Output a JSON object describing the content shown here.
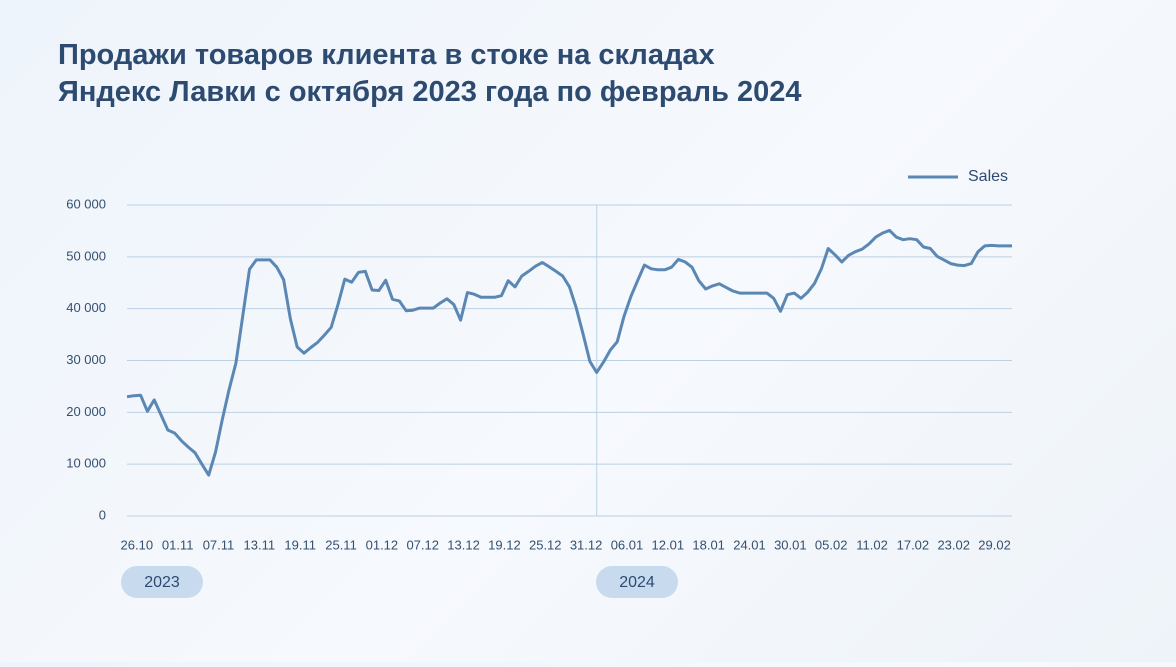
{
  "chart_data": {
    "type": "line",
    "title": [
      "Продажи товаров клиента в стоке на складах",
      "Яндекс Лавки с октября 2023 года по февраль 2024"
    ],
    "categories": [
      null,
      "26.10",
      null,
      null,
      null,
      null,
      null,
      "01.11",
      null,
      null,
      null,
      null,
      null,
      "07.11",
      null,
      null,
      null,
      null,
      null,
      "13.11",
      null,
      null,
      null,
      null,
      null,
      "19.11",
      null,
      null,
      null,
      null,
      null,
      "25.11",
      null,
      null,
      null,
      null,
      null,
      "01.12",
      null,
      null,
      null,
      null,
      null,
      "07.12",
      null,
      null,
      null,
      null,
      null,
      "13.12",
      null,
      null,
      null,
      null,
      null,
      "19.12",
      null,
      null,
      null,
      null,
      null,
      "25.12",
      null,
      null,
      null,
      null,
      null,
      "31.12",
      null,
      null,
      null,
      null,
      null,
      "06.01",
      null,
      null,
      null,
      null,
      null,
      "12.01",
      null,
      null,
      null,
      null,
      null,
      "18.01",
      null,
      null,
      null,
      null,
      null,
      "24.01",
      null,
      null,
      null,
      null,
      null,
      "30.01",
      null,
      null,
      null,
      null,
      null,
      "05.02",
      null,
      null,
      null,
      null,
      null,
      "11.02",
      null,
      null,
      null,
      null,
      null,
      "17.02",
      null,
      null,
      null,
      null,
      null,
      "23.02",
      null,
      null,
      null,
      null,
      null,
      "29.02",
      null,
      null,
      null
    ],
    "series": [
      {
        "name": "Sales",
        "color": "#5b87b5",
        "values": [
          23000,
          23200,
          23300,
          20200,
          22400,
          19500,
          16600,
          16000,
          14500,
          13300,
          12200,
          10000,
          7900,
          12300,
          18600,
          24400,
          29500,
          38500,
          47600,
          49400,
          49400,
          49400,
          48000,
          45600,
          38000,
          32600,
          31400,
          32500,
          33500,
          34900,
          36400,
          40800,
          45700,
          45100,
          47000,
          47200,
          43600,
          43500,
          45500,
          41800,
          41500,
          39600,
          39700,
          40100,
          40100,
          40100,
          41100,
          41900,
          40800,
          37800,
          43100,
          42800,
          42200,
          42200,
          42200,
          42500,
          45400,
          44200,
          46300,
          47200,
          48200,
          48900,
          48100,
          47200,
          46300,
          44200,
          40100,
          35100,
          29800,
          27700,
          29700,
          32000,
          33600,
          38500,
          42300,
          45400,
          48400,
          47700,
          47500,
          47500,
          48000,
          49500,
          49000,
          48000,
          45400,
          43800,
          44400,
          44800,
          44100,
          43400,
          43000,
          43000,
          43000,
          43000,
          43000,
          42000,
          39500,
          42700,
          43000,
          42000,
          43200,
          44900,
          47700,
          51600,
          50400,
          49000,
          50300,
          51000,
          51500,
          52500,
          53800,
          54600,
          55100,
          53800,
          53300,
          53500,
          53300,
          51900,
          51600,
          50100,
          49400,
          48700,
          48400,
          48300,
          48700,
          51000,
          52100,
          52200,
          52100,
          52100,
          52100
        ]
      }
    ],
    "ylim": [
      0,
      60000
    ],
    "yticks": [
      0,
      {
        "value": 10000,
        "label": "10 000"
      },
      {
        "value": 20000,
        "label": "20 000"
      },
      {
        "value": 30000,
        "label": "30 000"
      },
      {
        "value": 40000,
        "label": "40 000"
      },
      {
        "value": 50000,
        "label": "50 000"
      },
      {
        "value": 60000,
        "label": "60 000"
      }
    ],
    "grid": true,
    "legend": "top-right",
    "annotations": [
      "2023",
      "2024"
    ]
  }
}
